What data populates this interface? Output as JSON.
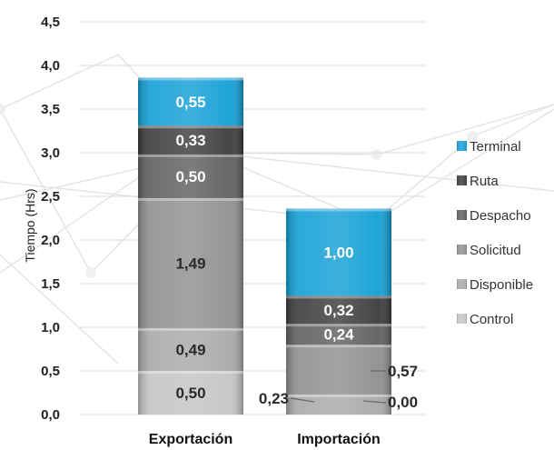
{
  "chart_data": {
    "type": "bar",
    "stacked": true,
    "title": "",
    "xlabel": "",
    "ylabel": "Tiempo (Hrs)",
    "ylim": [
      0,
      4.5
    ],
    "yticks": [
      "0,0",
      "0,5",
      "1,0",
      "1,5",
      "2,0",
      "2,5",
      "3,0",
      "3,5",
      "4,0",
      "4,5"
    ],
    "grid": true,
    "legend_position": "right",
    "categories": [
      "Exportación",
      "Importación"
    ],
    "series": [
      {
        "name": "Control",
        "values": [
          0.5,
          0.0
        ],
        "labels": [
          "0,50",
          "0,00"
        ],
        "color": "#c4c4c4"
      },
      {
        "name": "Disponible",
        "values": [
          0.49,
          0.23
        ],
        "labels": [
          "0,49",
          "0,23"
        ],
        "color": "#a9a9a9"
      },
      {
        "name": "Solicitud",
        "values": [
          1.49,
          0.57
        ],
        "labels": [
          "1,49",
          "0,57"
        ],
        "color": "#8f8f8f"
      },
      {
        "name": "Despacho",
        "values": [
          0.5,
          0.24
        ],
        "labels": [
          "0,50",
          "0,24"
        ],
        "color": "#5f5f5f"
      },
      {
        "name": "Ruta",
        "values": [
          0.33,
          0.32
        ],
        "labels": [
          "0,33",
          "0,32"
        ],
        "color": "#3c3c3c"
      },
      {
        "name": "Terminal",
        "values": [
          0.55,
          1.0
        ],
        "labels": [
          "0,55",
          "1,00"
        ],
        "color": "#139fd6"
      }
    ]
  }
}
